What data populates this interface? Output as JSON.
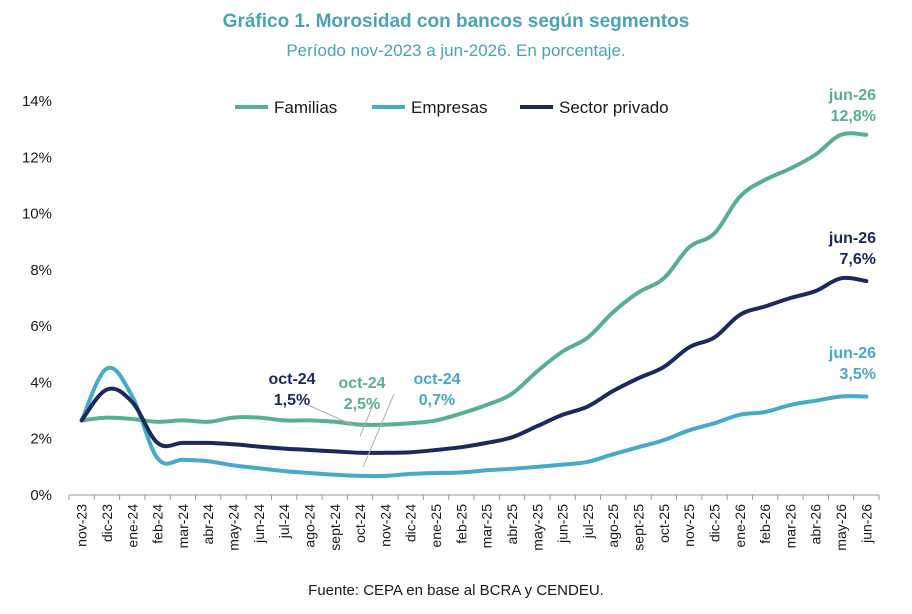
{
  "title": "Gráfico 1. Morosidad con bancos según segmentos",
  "subtitle": "Período nov-2023 a jun-2026. En porcentaje.",
  "source": "Fuente: CEPA en base al BCRA y CENDEU.",
  "colors": {
    "title": "#4aa3b8",
    "familias": "#5aaf8c",
    "empresas": "#46aac8",
    "sector_privado": "#1a2a5e",
    "axis_text": "#1a1a1a"
  },
  "chart_data": {
    "type": "line",
    "x": [
      "nov-23",
      "dic-23",
      "ene-24",
      "feb-24",
      "mar-24",
      "abr-24",
      "may-24",
      "jun-24",
      "jul-24",
      "ago-24",
      "sept-24",
      "oct-24",
      "nov-24",
      "dic-24",
      "ene-25",
      "feb-25",
      "mar-25",
      "abr-25",
      "may-25",
      "jun-25",
      "jul-25",
      "ago-25",
      "sept-25",
      "oct-25",
      "nov-25",
      "dic-25",
      "ene-26",
      "feb-26",
      "mar-26",
      "abr-26",
      "may-26",
      "jun-26"
    ],
    "ylim": [
      0,
      14
    ],
    "yticks": [
      0,
      2,
      4,
      6,
      8,
      10,
      12,
      14
    ],
    "ytick_labels": [
      "0%",
      "2%",
      "4%",
      "6%",
      "8%",
      "10%",
      "12%",
      "14%"
    ],
    "grid": false,
    "legend_position": "top",
    "series": [
      {
        "name": "Familias",
        "color_key": "familias",
        "values": [
          2.65,
          2.75,
          2.7,
          2.6,
          2.65,
          2.6,
          2.75,
          2.75,
          2.65,
          2.65,
          2.6,
          2.5,
          2.5,
          2.55,
          2.65,
          2.9,
          3.2,
          3.6,
          4.4,
          5.1,
          5.6,
          6.5,
          7.2,
          7.7,
          8.8,
          9.3,
          10.6,
          11.2,
          11.6,
          12.1,
          12.8,
          12.8
        ]
      },
      {
        "name": "Empresas",
        "color_key": "empresas",
        "values": [
          2.65,
          4.5,
          3.5,
          1.3,
          1.25,
          1.2,
          1.05,
          0.95,
          0.85,
          0.78,
          0.72,
          0.68,
          0.68,
          0.75,
          0.78,
          0.8,
          0.88,
          0.93,
          1.0,
          1.08,
          1.18,
          1.45,
          1.7,
          1.95,
          2.3,
          2.55,
          2.85,
          2.95,
          3.2,
          3.35,
          3.5,
          3.5
        ]
      },
      {
        "name": "Sector privado",
        "color_key": "sector_privado",
        "values": [
          2.65,
          3.75,
          3.3,
          1.85,
          1.85,
          1.85,
          1.8,
          1.72,
          1.65,
          1.6,
          1.55,
          1.5,
          1.5,
          1.52,
          1.6,
          1.7,
          1.85,
          2.05,
          2.45,
          2.85,
          3.15,
          3.7,
          4.15,
          4.55,
          5.25,
          5.6,
          6.4,
          6.7,
          7.0,
          7.25,
          7.7,
          7.6
        ]
      }
    ],
    "annotations": [
      {
        "period": "oct-24",
        "value": "1,5%",
        "color_key": "sector_privado"
      },
      {
        "period": "oct-24",
        "value": "2,5%",
        "color_key": "familias"
      },
      {
        "period": "oct-24",
        "value": "0,7%",
        "color_key": "empresas"
      },
      {
        "period": "jun-26",
        "value": "12,8%",
        "color_key": "familias"
      },
      {
        "period": "jun-26",
        "value": "7,6%",
        "color_key": "sector_privado"
      },
      {
        "period": "jun-26",
        "value": "3,5%",
        "color_key": "empresas"
      }
    ]
  }
}
